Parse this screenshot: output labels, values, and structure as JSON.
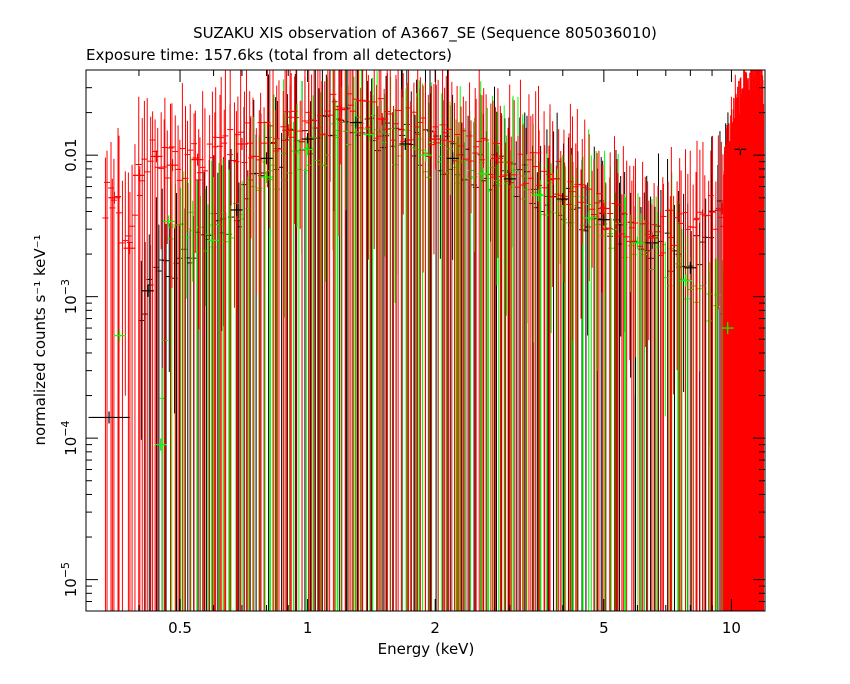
{
  "chart_data": {
    "type": "scatter",
    "title": "SUZAKU XIS observation of A3667_SE (Sequence 805036010)",
    "subtitle": "Exposure time: 157.6ks (total from all detectors)",
    "xlabel": "Energy (keV)",
    "ylabel": "normalized counts s⁻¹ keV⁻¹",
    "x_scale": "log",
    "y_scale": "log",
    "xlim": [
      0.3,
      12
    ],
    "ylim": [
      6e-06,
      0.04
    ],
    "x_ticks": [
      {
        "value": 0.5,
        "label": "0.5"
      },
      {
        "value": 1,
        "label": "1"
      },
      {
        "value": 2,
        "label": "2"
      },
      {
        "value": 5,
        "label": "5"
      },
      {
        "value": 10,
        "label": "10"
      }
    ],
    "y_ticks": [
      {
        "value": 1e-05,
        "base": "10",
        "exp": "−5"
      },
      {
        "value": 0.0001,
        "base": "10",
        "exp": "−4"
      },
      {
        "value": 0.001,
        "base": "10",
        "exp": "−3"
      },
      {
        "value": 0.01,
        "base": "",
        "exp": "",
        "label": "0.01"
      }
    ],
    "grid": false,
    "legend": "none",
    "series": [
      {
        "color": "#000000",
        "points": [
          {
            "x": 0.34,
            "y": 0.00014,
            "xerr": 0.04
          },
          {
            "x": 0.42,
            "y": 0.0011
          },
          {
            "x": 0.68,
            "y": 0.0041
          },
          {
            "x": 0.8,
            "y": 0.0095
          },
          {
            "x": 1.0,
            "y": 0.013
          },
          {
            "x": 1.3,
            "y": 0.017
          },
          {
            "x": 1.7,
            "y": 0.012
          },
          {
            "x": 2.2,
            "y": 0.0095
          },
          {
            "x": 3.0,
            "y": 0.0068
          },
          {
            "x": 4.0,
            "y": 0.0049
          },
          {
            "x": 5.0,
            "y": 0.0035
          },
          {
            "x": 6.5,
            "y": 0.0024
          },
          {
            "x": 8.0,
            "y": 0.0016
          },
          {
            "x": 10.5,
            "y": 0.011
          }
        ]
      },
      {
        "color": "#00ff00",
        "points": [
          {
            "x": 0.36,
            "y": 0.00053
          },
          {
            "x": 0.45,
            "y": 9e-05
          },
          {
            "x": 0.47,
            "y": 0.0034
          },
          {
            "x": 0.6,
            "y": 0.0025
          },
          {
            "x": 0.8,
            "y": 0.007
          },
          {
            "x": 1.0,
            "y": 0.011
          },
          {
            "x": 1.4,
            "y": 0.014
          },
          {
            "x": 1.9,
            "y": 0.01
          },
          {
            "x": 2.6,
            "y": 0.0074
          },
          {
            "x": 3.5,
            "y": 0.0052
          },
          {
            "x": 4.6,
            "y": 0.0036
          },
          {
            "x": 6.0,
            "y": 0.0024
          },
          {
            "x": 7.8,
            "y": 0.0013
          },
          {
            "x": 9.8,
            "y": 0.0006
          }
        ]
      },
      {
        "color": "#ff0000",
        "points": [
          {
            "x": 0.35,
            "y": 0.005
          },
          {
            "x": 0.38,
            "y": 0.0022
          },
          {
            "x": 0.4,
            "y": 0.0072
          },
          {
            "x": 0.44,
            "y": 0.0098
          },
          {
            "x": 0.48,
            "y": 0.0085
          },
          {
            "x": 0.55,
            "y": 0.0093
          },
          {
            "x": 0.7,
            "y": 0.012
          },
          {
            "x": 0.9,
            "y": 0.015
          },
          {
            "x": 1.2,
            "y": 0.021
          },
          {
            "x": 1.5,
            "y": 0.018
          },
          {
            "x": 2.0,
            "y": 0.013
          },
          {
            "x": 2.8,
            "y": 0.0095
          },
          {
            "x": 3.8,
            "y": 0.0068
          },
          {
            "x": 5.0,
            "y": 0.0042
          },
          {
            "x": 6.5,
            "y": 0.0026
          },
          {
            "x": 9.5,
            "y": 0.0042
          },
          {
            "x": 10.5,
            "y": 0.012
          },
          {
            "x": 11.5,
            "y": 0.018
          }
        ]
      }
    ]
  }
}
